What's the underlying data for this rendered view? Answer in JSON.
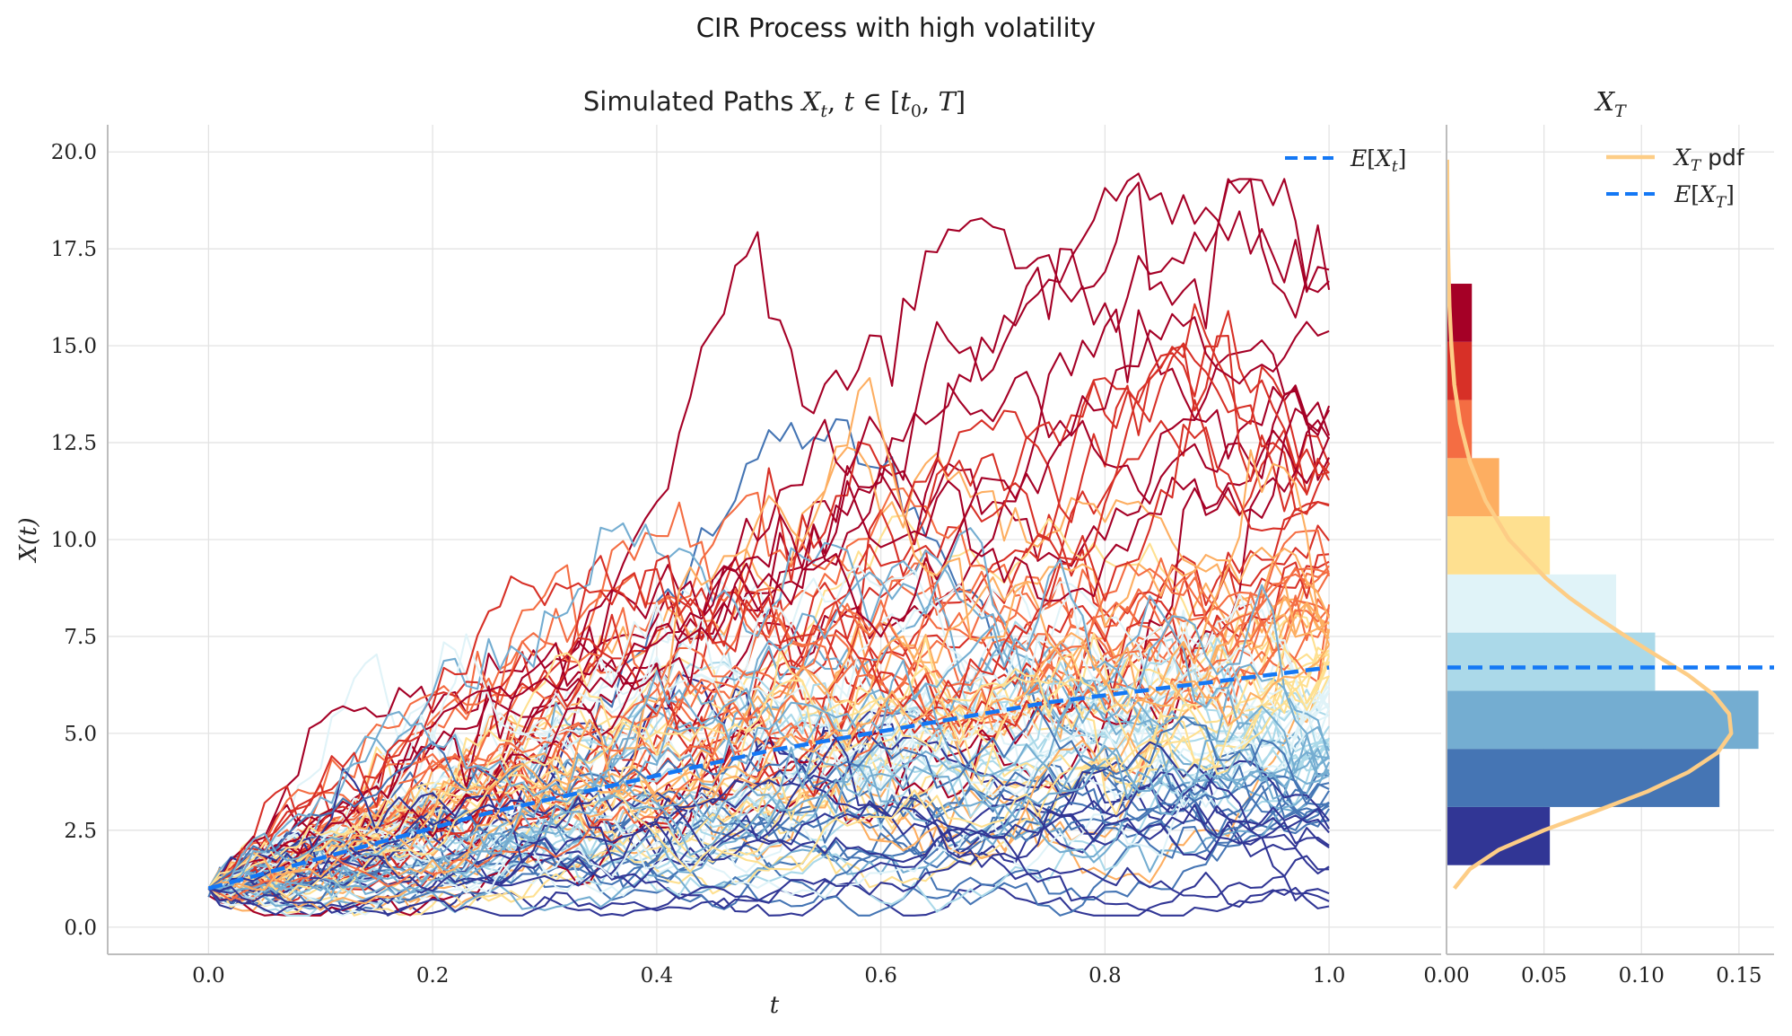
{
  "title": "CIR Process with high volatility",
  "colors": {
    "expectation": "#1478f5",
    "pdf": "#fdcd86",
    "grid": "#e3e3e3",
    "spine": "#bdbdbd",
    "colormap": [
      "#313695",
      "#4575b4",
      "#74add1",
      "#abd9e9",
      "#e0f3f8",
      "#fee090",
      "#fdae61",
      "#f46d43",
      "#d73027",
      "#a50026"
    ]
  },
  "chart_data": [
    {
      "type": "line",
      "title": "Simulated Paths X_t, t ∈ [t_0, T]",
      "xlabel": "t",
      "ylabel": "X(t)",
      "xlim": [
        -0.09,
        1.1
      ],
      "ylim": [
        -0.7,
        20.7
      ],
      "x_ticks": [
        "0.0",
        "0.2",
        "0.4",
        "0.6",
        "0.8",
        "1.0"
      ],
      "y_ticks": [
        "0.0",
        "2.5",
        "5.0",
        "7.5",
        "10.0",
        "12.5",
        "15.0",
        "17.5",
        "20.0"
      ],
      "grid": true,
      "legend_position": "top-right",
      "legend_entry": "E[X_t]",
      "series": [
        {
          "line_style": "dashed",
          "values_x": [
            0,
            0.25,
            0.5,
            0.75,
            1.0
          ],
          "values_y": [
            1.0,
            2.95,
            4.55,
            5.8,
            6.7
          ]
        }
      ],
      "paths": {
        "count": 100,
        "steps": 100,
        "x0": 1.0,
        "t_start": 0.0,
        "t_end": 1.0,
        "colored_by": "terminal value"
      },
      "notable_peaks": {
        "max_path_peak": 19.3,
        "max_path_peak_t": 0.82,
        "low_path_peak": 12.5,
        "low_path_peak_t": 0.54
      }
    },
    {
      "type": "bar",
      "orientation": "horizontal",
      "title": "X_T",
      "xlim": [
        0.0,
        0.168
      ],
      "x_ticks": [
        "0.00",
        "0.05",
        "0.10",
        "0.15"
      ],
      "grid": true,
      "legend_position": "top-right",
      "legend_entries": [
        "X_T pdf",
        "E[X_T]"
      ],
      "bins": [
        {
          "low": 1.6,
          "high": 3.1,
          "density": 0.053
        },
        {
          "low": 3.1,
          "high": 4.6,
          "density": 0.14
        },
        {
          "low": 4.6,
          "high": 6.1,
          "density": 0.16
        },
        {
          "low": 6.1,
          "high": 7.6,
          "density": 0.107
        },
        {
          "low": 7.6,
          "high": 9.1,
          "density": 0.087
        },
        {
          "low": 9.1,
          "high": 10.6,
          "density": 0.053
        },
        {
          "low": 10.6,
          "high": 12.1,
          "density": 0.027
        },
        {
          "low": 12.1,
          "high": 13.6,
          "density": 0.013
        },
        {
          "low": 13.6,
          "high": 15.1,
          "density": 0.013
        },
        {
          "low": 15.1,
          "high": 16.6,
          "density": 0.013
        }
      ],
      "expectation": 6.7,
      "pdf_curve": {
        "y": [
          1.0,
          1.5,
          2.0,
          2.5,
          3.0,
          3.5,
          4.0,
          4.5,
          5.0,
          5.5,
          6.0,
          6.5,
          7.0,
          7.5,
          8.0,
          8.5,
          9.0,
          10.0,
          11.0,
          12.0,
          13.0,
          14.0,
          15.0,
          16.0,
          17.0,
          18.0,
          19.0,
          19.8
        ],
        "density": [
          0.004,
          0.012,
          0.027,
          0.05,
          0.077,
          0.103,
          0.124,
          0.139,
          0.146,
          0.145,
          0.137,
          0.124,
          0.108,
          0.092,
          0.077,
          0.063,
          0.051,
          0.032,
          0.02,
          0.012,
          0.007,
          0.004,
          0.0025,
          0.0015,
          0.001,
          0.0006,
          0.0004,
          0.0003
        ]
      }
    }
  ]
}
